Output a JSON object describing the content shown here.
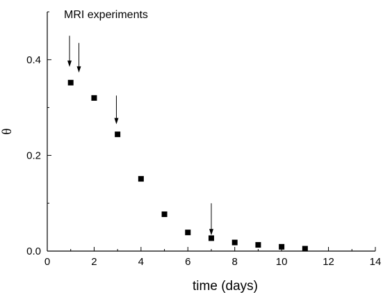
{
  "chart_data": {
    "type": "scatter",
    "title": "",
    "xlabel": "time (days)",
    "ylabel": "θ",
    "annotation": "MRI experiments",
    "xlim": [
      0,
      14
    ],
    "ylim": [
      0,
      0.5
    ],
    "x_ticks": [
      "0",
      "2",
      "4",
      "6",
      "8",
      "10",
      "12",
      "14"
    ],
    "y_ticks": [
      "0.0",
      "0.2",
      "0.4"
    ],
    "grid": false,
    "legend": "none",
    "series": [
      {
        "x": [
          1,
          2,
          3,
          4,
          5,
          6,
          7,
          8,
          9,
          10,
          11
        ],
        "y": [
          0.352,
          0.32,
          0.244,
          0.151,
          0.077,
          0.039,
          0.027,
          0.018,
          0.013,
          0.009,
          0.005
        ],
        "marker": "square",
        "color": "#000000"
      }
    ],
    "arrows": [
      {
        "x": 0.95,
        "y_top": 0.45,
        "y_bottom": 0.385
      },
      {
        "x": 1.35,
        "y_top": 0.435,
        "y_bottom": 0.373
      },
      {
        "x": 2.95,
        "y_top": 0.325,
        "y_bottom": 0.265
      },
      {
        "x": 7.0,
        "y_top": 0.1,
        "y_bottom": 0.033
      }
    ]
  }
}
